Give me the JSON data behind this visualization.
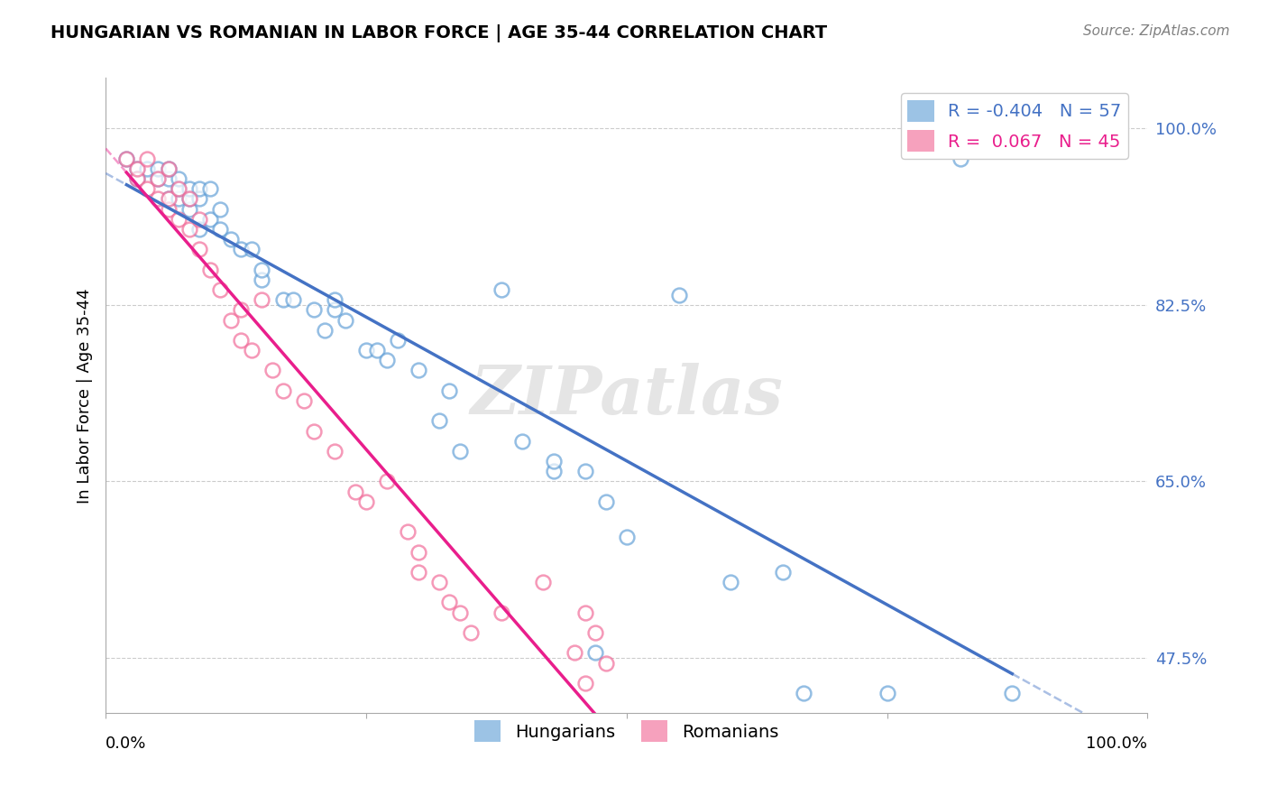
{
  "title": "HUNGARIAN VS ROMANIAN IN LABOR FORCE | AGE 35-44 CORRELATION CHART",
  "source": "Source: ZipAtlas.com",
  "ylabel": "In Labor Force | Age 35-44",
  "xlim": [
    0.0,
    1.0
  ],
  "ylim": [
    0.42,
    1.05
  ],
  "hungarian_color": "#5b9bd5",
  "romanian_color": "#f06292",
  "hungarian_line_color": "#4472c4",
  "romanian_line_color": "#e91e8c",
  "watermark": "ZIPatlas",
  "hungarian_scatter": [
    [
      0.02,
      0.97
    ],
    [
      0.03,
      0.96
    ],
    [
      0.03,
      0.95
    ],
    [
      0.04,
      0.96
    ],
    [
      0.05,
      0.95
    ],
    [
      0.05,
      0.96
    ],
    [
      0.06,
      0.93
    ],
    [
      0.06,
      0.95
    ],
    [
      0.06,
      0.96
    ],
    [
      0.07,
      0.93
    ],
    [
      0.07,
      0.94
    ],
    [
      0.07,
      0.95
    ],
    [
      0.08,
      0.92
    ],
    [
      0.08,
      0.93
    ],
    [
      0.08,
      0.94
    ],
    [
      0.09,
      0.9
    ],
    [
      0.09,
      0.93
    ],
    [
      0.09,
      0.94
    ],
    [
      0.1,
      0.91
    ],
    [
      0.1,
      0.94
    ],
    [
      0.11,
      0.9
    ],
    [
      0.11,
      0.92
    ],
    [
      0.12,
      0.89
    ],
    [
      0.13,
      0.88
    ],
    [
      0.14,
      0.88
    ],
    [
      0.15,
      0.85
    ],
    [
      0.15,
      0.86
    ],
    [
      0.17,
      0.83
    ],
    [
      0.18,
      0.83
    ],
    [
      0.2,
      0.82
    ],
    [
      0.21,
      0.8
    ],
    [
      0.22,
      0.82
    ],
    [
      0.22,
      0.83
    ],
    [
      0.23,
      0.81
    ],
    [
      0.25,
      0.78
    ],
    [
      0.26,
      0.78
    ],
    [
      0.27,
      0.77
    ],
    [
      0.28,
      0.79
    ],
    [
      0.3,
      0.76
    ],
    [
      0.32,
      0.71
    ],
    [
      0.33,
      0.74
    ],
    [
      0.34,
      0.68
    ],
    [
      0.38,
      0.84
    ],
    [
      0.4,
      0.69
    ],
    [
      0.43,
      0.66
    ],
    [
      0.43,
      0.67
    ],
    [
      0.46,
      0.66
    ],
    [
      0.48,
      0.63
    ],
    [
      0.5,
      0.595
    ],
    [
      0.55,
      0.835
    ],
    [
      0.6,
      0.55
    ],
    [
      0.65,
      0.56
    ],
    [
      0.67,
      0.44
    ],
    [
      0.75,
      0.44
    ],
    [
      0.82,
      0.97
    ],
    [
      0.87,
      0.44
    ],
    [
      0.47,
      0.48
    ]
  ],
  "romanian_scatter": [
    [
      0.02,
      0.97
    ],
    [
      0.03,
      0.95
    ],
    [
      0.03,
      0.96
    ],
    [
      0.04,
      0.94
    ],
    [
      0.04,
      0.97
    ],
    [
      0.05,
      0.93
    ],
    [
      0.05,
      0.95
    ],
    [
      0.06,
      0.92
    ],
    [
      0.06,
      0.93
    ],
    [
      0.06,
      0.96
    ],
    [
      0.07,
      0.91
    ],
    [
      0.07,
      0.94
    ],
    [
      0.08,
      0.9
    ],
    [
      0.08,
      0.93
    ],
    [
      0.09,
      0.88
    ],
    [
      0.09,
      0.91
    ],
    [
      0.1,
      0.86
    ],
    [
      0.11,
      0.84
    ],
    [
      0.12,
      0.81
    ],
    [
      0.13,
      0.79
    ],
    [
      0.13,
      0.82
    ],
    [
      0.14,
      0.78
    ],
    [
      0.15,
      0.83
    ],
    [
      0.16,
      0.76
    ],
    [
      0.17,
      0.74
    ],
    [
      0.19,
      0.73
    ],
    [
      0.2,
      0.7
    ],
    [
      0.22,
      0.68
    ],
    [
      0.24,
      0.64
    ],
    [
      0.25,
      0.63
    ],
    [
      0.27,
      0.65
    ],
    [
      0.29,
      0.6
    ],
    [
      0.3,
      0.56
    ],
    [
      0.3,
      0.58
    ],
    [
      0.32,
      0.55
    ],
    [
      0.33,
      0.53
    ],
    [
      0.34,
      0.52
    ],
    [
      0.35,
      0.5
    ],
    [
      0.38,
      0.52
    ],
    [
      0.42,
      0.55
    ],
    [
      0.45,
      0.48
    ],
    [
      0.46,
      0.45
    ],
    [
      0.46,
      0.52
    ],
    [
      0.47,
      0.5
    ],
    [
      0.48,
      0.47
    ]
  ]
}
